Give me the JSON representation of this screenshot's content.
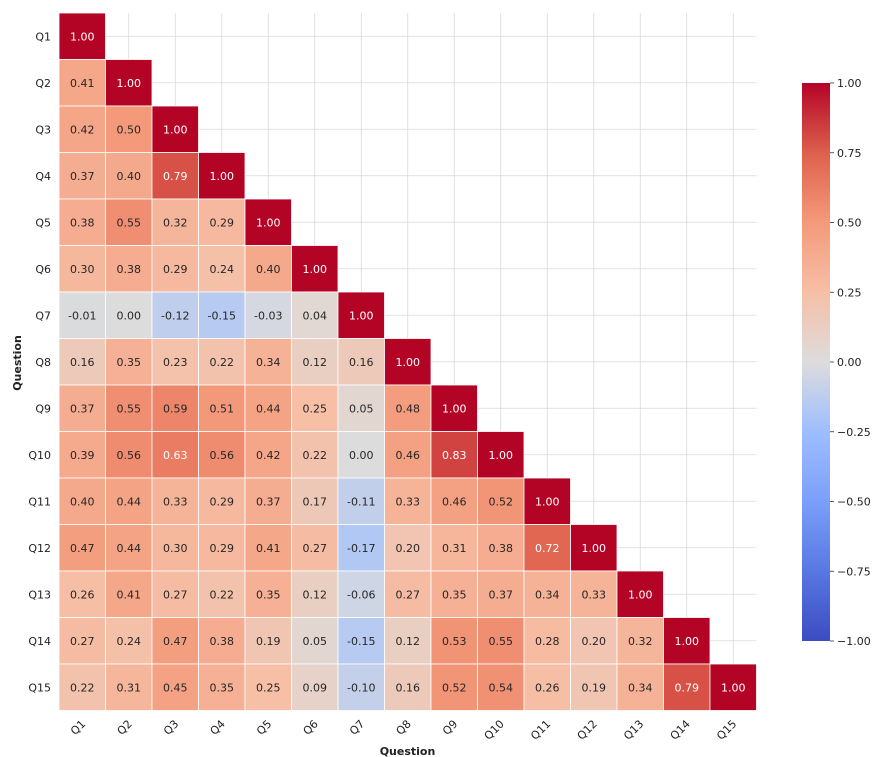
{
  "chart_data": {
    "type": "heatmap",
    "xlabel": "Question",
    "ylabel": "Question",
    "labels": [
      "Q1",
      "Q2",
      "Q3",
      "Q4",
      "Q5",
      "Q6",
      "Q7",
      "Q8",
      "Q9",
      "Q10",
      "Q11",
      "Q12",
      "Q13",
      "Q14",
      "Q15"
    ],
    "matrix_lower": [
      [
        1.0
      ],
      [
        0.41,
        1.0
      ],
      [
        0.42,
        0.5,
        1.0
      ],
      [
        0.37,
        0.4,
        0.79,
        1.0
      ],
      [
        0.38,
        0.55,
        0.32,
        0.29,
        1.0
      ],
      [
        0.3,
        0.38,
        0.29,
        0.24,
        0.4,
        1.0
      ],
      [
        -0.01,
        -0.0,
        -0.12,
        -0.15,
        -0.03,
        0.04,
        1.0
      ],
      [
        0.16,
        0.35,
        0.23,
        0.22,
        0.34,
        0.12,
        0.16,
        1.0
      ],
      [
        0.37,
        0.55,
        0.59,
        0.51,
        0.44,
        0.25,
        0.05,
        0.48,
        1.0
      ],
      [
        0.39,
        0.56,
        0.63,
        0.56,
        0.42,
        0.22,
        -0.0,
        0.46,
        0.83,
        1.0
      ],
      [
        0.4,
        0.44,
        0.33,
        0.29,
        0.37,
        0.17,
        -0.11,
        0.33,
        0.46,
        0.52,
        1.0
      ],
      [
        0.47,
        0.44,
        0.3,
        0.29,
        0.41,
        0.27,
        -0.17,
        0.2,
        0.31,
        0.38,
        0.72,
        1.0
      ],
      [
        0.26,
        0.41,
        0.27,
        0.22,
        0.35,
        0.12,
        -0.06,
        0.27,
        0.35,
        0.37,
        0.34,
        0.33,
        1.0
      ],
      [
        0.27,
        0.24,
        0.47,
        0.38,
        0.19,
        0.05,
        -0.15,
        0.12,
        0.53,
        0.55,
        0.28,
        0.2,
        0.32,
        1.0
      ],
      [
        0.22,
        0.31,
        0.45,
        0.35,
        0.25,
        0.09,
        -0.1,
        0.16,
        0.52,
        0.54,
        0.26,
        0.19,
        0.34,
        0.79,
        1.0
      ]
    ],
    "value_format": "2 decimals",
    "colormap": "coolwarm",
    "vmin": -1.0,
    "vmax": 1.0,
    "colorbar_ticks": [
      "1.00",
      "0.75",
      "0.50",
      "0.25",
      "0.00",
      "−0.25",
      "−0.50",
      "−0.75",
      "−1.00"
    ],
    "colorbar_tick_values": [
      1.0,
      0.75,
      0.5,
      0.25,
      0.0,
      -0.25,
      -0.5,
      -0.75,
      -1.0
    ],
    "grid": true,
    "mask": "upper triangle"
  }
}
